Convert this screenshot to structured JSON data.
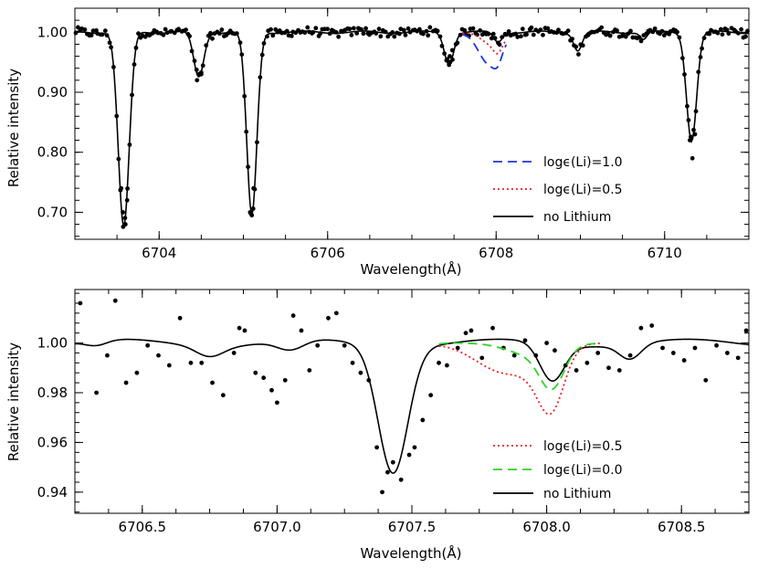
{
  "chart_data": [
    {
      "type": "line",
      "xlabel": "Wavelength(Å)",
      "ylabel": "Relative intensity",
      "xlim": [
        6703.0,
        6711.0
      ],
      "ylim": [
        0.655,
        1.04
      ],
      "xticks": [
        6704,
        6706,
        6708,
        6710
      ],
      "xtick_labels": [
        "6704",
        "6706",
        "6708",
        "6710"
      ],
      "yticks": [
        0.7,
        0.8,
        0.9,
        1.0
      ],
      "ytick_labels": [
        "0.70",
        "0.80",
        "0.90",
        "1.00"
      ],
      "legend_position": "lower-right",
      "lines": [
        {
          "id": "no-lithium",
          "name": "no Lithium",
          "color": "#000000",
          "dash": "solid",
          "dips": [
            [
              6703.58,
              0.325,
              0.065
            ],
            [
              6704.47,
              0.075,
              0.06
            ],
            [
              6705.1,
              0.305,
              0.06
            ],
            [
              6707.44,
              0.052,
              0.055
            ],
            [
              6708.02,
              0.016,
              0.05
            ],
            [
              6708.97,
              0.03,
              0.05
            ],
            [
              6709.75,
              0.012,
              0.04
            ],
            [
              6710.32,
              0.18,
              0.06
            ]
          ],
          "wiggle": 0.004
        },
        {
          "id": "li-1.0",
          "name": "logϵ(Li)=1.0",
          "color": "#1f35d6",
          "dash": "long",
          "xrange": [
            6707.6,
            6708.12
          ],
          "dips": [
            [
              6707.92,
              0.055,
              0.13
            ]
          ]
        },
        {
          "id": "li-0.5",
          "name": "logϵ(Li)=0.5",
          "color": "#e8202a",
          "dash": "dot",
          "xrange": [
            6707.6,
            6708.12
          ],
          "dips": [
            [
              6707.95,
              0.022,
              0.13
            ]
          ]
        }
      ],
      "legend": [
        {
          "id": "li-1.0",
          "text": "logϵ(Li)=1.0"
        },
        {
          "id": "li-0.5",
          "text": "logϵ(Li)=0.5"
        },
        {
          "id": "no-lithium",
          "text": "no Lithium"
        }
      ],
      "points_model": "no-lithium",
      "points_noise": 0.007,
      "points_count": 300,
      "points": [
        [
          6703.55,
          0.74
        ],
        [
          6703.57,
          0.7
        ],
        [
          6703.6,
          0.68
        ],
        [
          6703.62,
          0.72
        ],
        [
          6705.08,
          0.7
        ],
        [
          6705.1,
          0.695
        ],
        [
          6705.12,
          0.74
        ],
        [
          6710.3,
          0.82
        ],
        [
          6710.33,
          0.79
        ],
        [
          6710.36,
          0.83
        ],
        [
          6707.42,
          0.955
        ],
        [
          6707.45,
          0.96
        ],
        [
          6707.48,
          0.97
        ],
        [
          6704.45,
          0.92
        ],
        [
          6704.5,
          0.93
        ]
      ]
    },
    {
      "type": "line",
      "xlabel": "Wavelength(Å)",
      "ylabel": "Relative intensity",
      "xlim": [
        6706.25,
        6708.75
      ],
      "ylim": [
        0.9315,
        1.0215
      ],
      "xticks": [
        6706.5,
        6707.0,
        6707.5,
        6708.0,
        6708.5
      ],
      "xtick_labels": [
        "6706.5",
        "6707.0",
        "6707.5",
        "6708.0",
        "6708.5"
      ],
      "yticks": [
        0.94,
        0.96,
        0.98,
        1.0
      ],
      "ytick_labels": [
        "0.94",
        "0.96",
        "0.98",
        "1.00"
      ],
      "legend_position": "lower-right",
      "lines": [
        {
          "id": "no-lithium",
          "name": "no Lithium",
          "color": "#000000",
          "dash": "solid",
          "dips": [
            [
              6707.43,
              0.051,
              0.055
            ],
            [
              6708.02,
              0.015,
              0.045
            ],
            [
              6708.31,
              0.006,
              0.04
            ],
            [
              6706.33,
              0.002,
              0.04
            ],
            [
              6706.75,
              0.004,
              0.05
            ],
            [
              6707.05,
              0.004,
              0.05
            ]
          ],
          "wiggle": 0.003
        },
        {
          "id": "li-0.5",
          "name": "logϵ(Li)=0.5",
          "color": "#e8202a",
          "dash": "dot",
          "xrange": [
            6707.6,
            6708.2
          ],
          "dips": [
            [
              6707.43,
              0.051,
              0.055
            ],
            [
              6708.02,
              0.015,
              0.045
            ],
            [
              6707.85,
              0.012,
              0.11
            ],
            [
              6708.0,
              0.01,
              0.06
            ]
          ]
        },
        {
          "id": "li-0.0",
          "name": "logϵ(Li)=0.0",
          "color": "#2fd12f",
          "dash": "long",
          "xrange": [
            6707.6,
            6708.2
          ],
          "dips": [
            [
              6707.43,
              0.051,
              0.055
            ],
            [
              6708.02,
              0.015,
              0.045
            ],
            [
              6707.95,
              0.005,
              0.09
            ]
          ]
        }
      ],
      "legend": [
        {
          "id": "li-0.5",
          "text": "logϵ(Li)=0.5"
        },
        {
          "id": "li-0.0",
          "text": "logϵ(Li)=0.0"
        },
        {
          "id": "no-lithium",
          "text": "no Lithium"
        }
      ],
      "points": [
        [
          6706.27,
          1.016
        ],
        [
          6706.33,
          0.98
        ],
        [
          6706.37,
          0.995
        ],
        [
          6706.4,
          1.017
        ],
        [
          6706.44,
          0.984
        ],
        [
          6706.48,
          0.988
        ],
        [
          6706.52,
          0.999
        ],
        [
          6706.56,
          0.995
        ],
        [
          6706.6,
          0.991
        ],
        [
          6706.64,
          1.01
        ],
        [
          6706.68,
          0.992
        ],
        [
          6706.72,
          0.992
        ],
        [
          6706.76,
          0.984
        ],
        [
          6706.8,
          0.979
        ],
        [
          6706.84,
          0.996
        ],
        [
          6706.86,
          1.006
        ],
        [
          6706.88,
          1.005
        ],
        [
          6706.92,
          0.988
        ],
        [
          6706.95,
          0.986
        ],
        [
          6706.98,
          0.981
        ],
        [
          6707.0,
          0.976
        ],
        [
          6707.03,
          0.985
        ],
        [
          6707.06,
          1.011
        ],
        [
          6707.09,
          1.005
        ],
        [
          6707.12,
          0.989
        ],
        [
          6707.15,
          0.999
        ],
        [
          6707.19,
          1.01
        ],
        [
          6707.22,
          1.012
        ],
        [
          6707.25,
          0.999
        ],
        [
          6707.28,
          0.992
        ],
        [
          6707.31,
          0.988
        ],
        [
          6707.34,
          0.985
        ],
        [
          6707.37,
          0.958
        ],
        [
          6707.39,
          0.94
        ],
        [
          6707.41,
          0.948
        ],
        [
          6707.43,
          0.952
        ],
        [
          6707.46,
          0.945
        ],
        [
          6707.49,
          0.955
        ],
        [
          6707.51,
          0.958
        ],
        [
          6707.54,
          0.969
        ],
        [
          6707.57,
          0.979
        ],
        [
          6707.6,
          0.992
        ],
        [
          6707.63,
          0.991
        ],
        [
          6707.67,
          0.998
        ],
        [
          6707.7,
          1.004
        ],
        [
          6707.72,
          1.005
        ],
        [
          6707.76,
          0.994
        ],
        [
          6707.8,
          1.006
        ],
        [
          6707.84,
          0.998
        ],
        [
          6707.88,
          0.995
        ],
        [
          6707.92,
          1.001
        ],
        [
          6707.96,
          0.995
        ],
        [
          6708.0,
          1.0
        ],
        [
          6708.03,
          0.997
        ],
        [
          6708.07,
          0.991
        ],
        [
          6708.11,
          0.989
        ],
        [
          6708.15,
          0.992
        ],
        [
          6708.19,
          0.996
        ],
        [
          6708.23,
          0.99
        ],
        [
          6708.27,
          0.989
        ],
        [
          6708.31,
          0.995
        ],
        [
          6708.35,
          1.006
        ],
        [
          6708.39,
          1.007
        ],
        [
          6708.43,
          0.998
        ],
        [
          6708.47,
          0.996
        ],
        [
          6708.51,
          0.993
        ],
        [
          6708.55,
          0.998
        ],
        [
          6708.59,
          0.985
        ],
        [
          6708.63,
          0.999
        ],
        [
          6708.67,
          0.996
        ],
        [
          6708.71,
          0.994
        ],
        [
          6708.74,
          1.005
        ]
      ]
    }
  ]
}
